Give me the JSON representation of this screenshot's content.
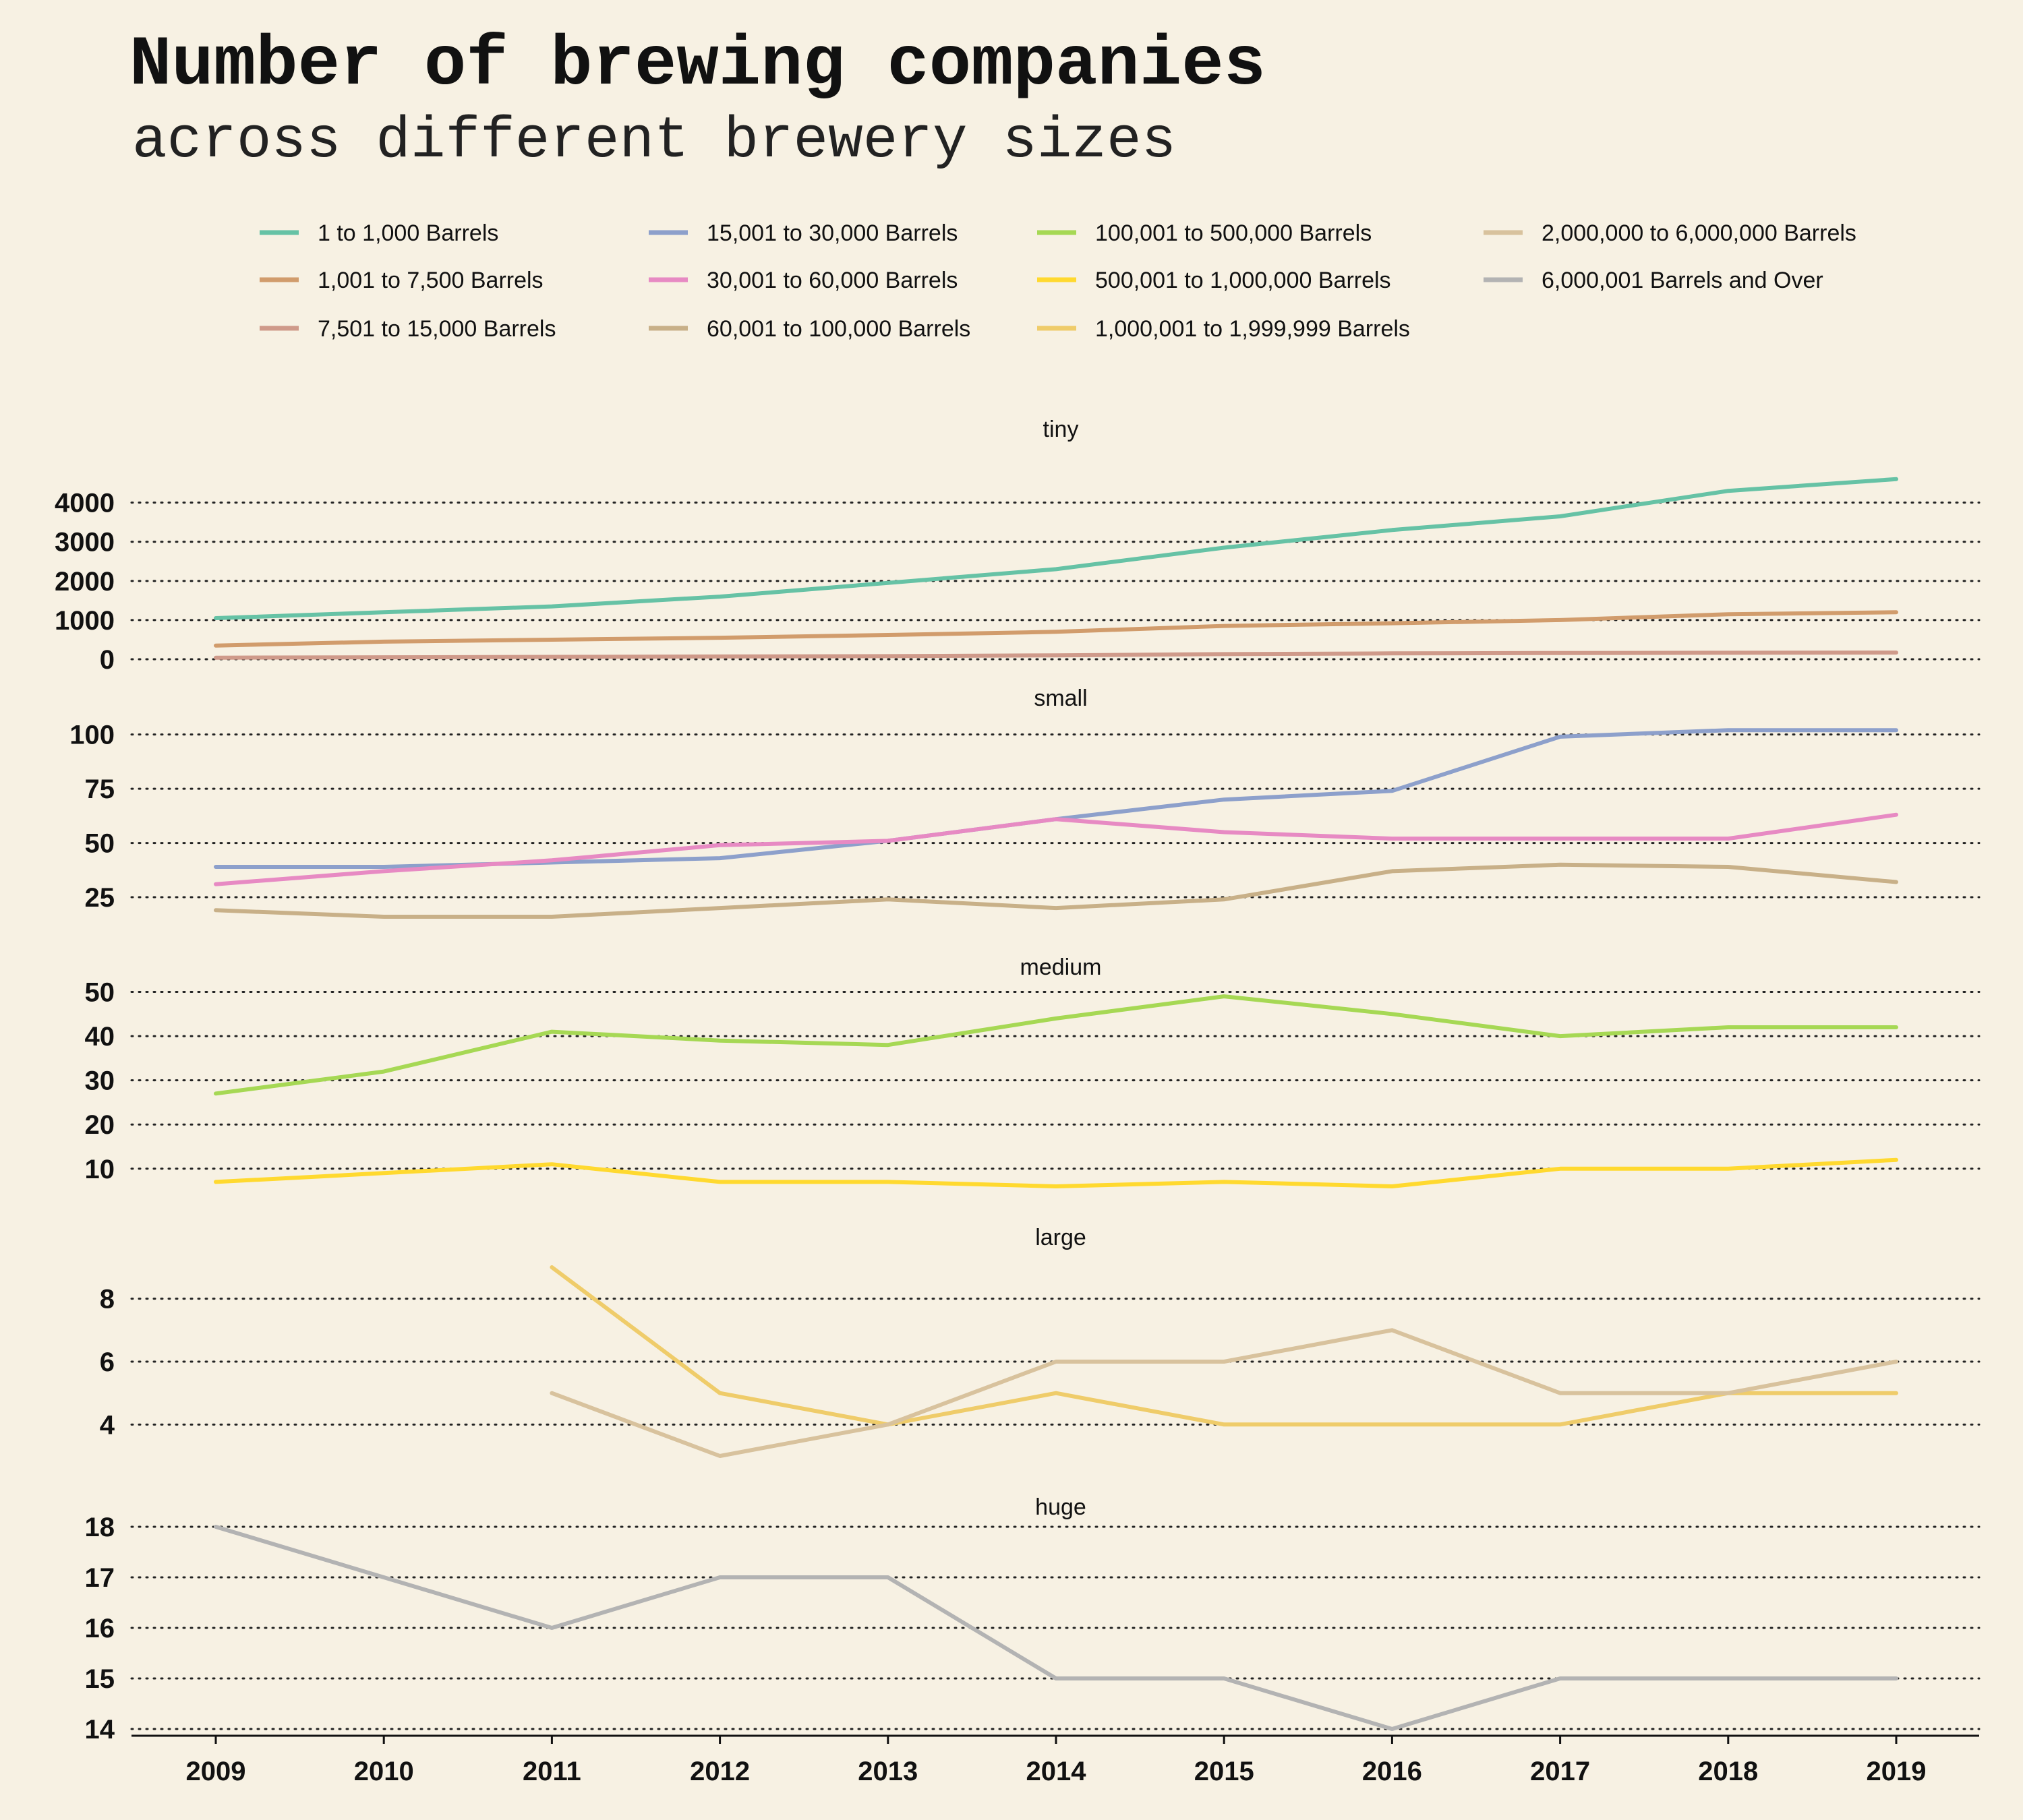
{
  "chart_data": {
    "type": "line",
    "title": "Number of brewing companies",
    "subtitle": "across different brewery sizes",
    "x": [
      2009,
      2010,
      2011,
      2012,
      2013,
      2014,
      2015,
      2016,
      2017,
      2018,
      2019
    ],
    "x_tick_labels": [
      "2009",
      "2010",
      "2011",
      "2012",
      "2013",
      "2014",
      "2015",
      "2016",
      "2017",
      "2018",
      "2019"
    ],
    "grid": "horizontal dotted",
    "legend_position": "top",
    "legend": [
      {
        "name": "1 to 1,000 Barrels",
        "color": "#66c2a5"
      },
      {
        "name": "15,001 to 30,000 Barrels",
        "color": "#8da0cb"
      },
      {
        "name": "100,001 to 500,000 Barrels",
        "color": "#a6d854"
      },
      {
        "name": "2,000,000 to 6,000,000 Barrels",
        "color": "#d8c29d"
      },
      {
        "name": "1,001 to 7,500 Barrels",
        "color": "#d19c6c"
      },
      {
        "name": "30,001 to 60,000 Barrels",
        "color": "#e78ac3"
      },
      {
        "name": "500,001 to 1,000,000 Barrels",
        "color": "#ffd92f"
      },
      {
        "name": "6,000,001 Barrels and Over",
        "color": "#b3b3b3"
      },
      {
        "name": "7,501 to 15,000 Barrels",
        "color": "#cf9a8a"
      },
      {
        "name": "60,001 to 100,000 Barrels",
        "color": "#c8b088"
      },
      {
        "name": "1,000,001 to 1,999,999 Barrels",
        "color": "#efcc6a"
      }
    ],
    "facets": [
      {
        "name": "tiny",
        "ylim": [
          0,
          4700
        ],
        "yticks": [
          0,
          1000,
          2000,
          3000,
          4000
        ],
        "ytick_labels": [
          "0",
          "1000",
          "2000",
          "3000",
          "4000"
        ],
        "series": [
          {
            "name": "1 to 1,000 Barrels",
            "color": "#66c2a5",
            "values": [
              1050,
              1200,
              1350,
              1600,
              1950,
              2300,
              2850,
              3300,
              3650,
              4300,
              4600
            ]
          },
          {
            "name": "1,001 to 7,500 Barrels",
            "color": "#d19c6c",
            "values": [
              350,
              450,
              500,
              550,
              620,
              700,
              850,
              920,
              1000,
              1150,
              1200
            ]
          },
          {
            "name": "7,501 to 15,000 Barrels",
            "color": "#cf9a8a",
            "values": [
              40,
              50,
              60,
              70,
              80,
              100,
              130,
              150,
              160,
              165,
              170
            ]
          }
        ]
      },
      {
        "name": "small",
        "ylim": [
          16,
          103
        ],
        "yticks": [
          25,
          50,
          75,
          100
        ],
        "ytick_labels": [
          "25",
          "50",
          "75",
          "100"
        ],
        "series": [
          {
            "name": "15,001 to 30,000 Barrels",
            "color": "#8da0cb",
            "values": [
              39,
              39,
              41,
              43,
              51,
              61,
              70,
              74,
              99,
              102,
              102
            ]
          },
          {
            "name": "30,001 to 60,000 Barrels",
            "color": "#e78ac3",
            "values": [
              31,
              37,
              42,
              49,
              51,
              61,
              55,
              52,
              52,
              52,
              63
            ]
          },
          {
            "name": "60,001 to 100,000 Barrels",
            "color": "#c8b088",
            "values": [
              19,
              16,
              16,
              20,
              24,
              20,
              24,
              37,
              40,
              39,
              32
            ]
          }
        ]
      },
      {
        "name": "medium",
        "ylim": [
          6,
          51
        ],
        "yticks": [
          10,
          20,
          30,
          40,
          50
        ],
        "ytick_labels": [
          "10",
          "20",
          "30",
          "40",
          "50"
        ],
        "series": [
          {
            "name": "100,001 to 500,000 Barrels",
            "color": "#a6d854",
            "values": [
              27,
              32,
              41,
              39,
              38,
              44,
              49,
              45,
              40,
              42,
              42
            ]
          },
          {
            "name": "500,001 to 1,000,000 Barrels",
            "color": "#ffd92f",
            "values": [
              7,
              9,
              11,
              7,
              7,
              6,
              7,
              6,
              10,
              10,
              12
            ]
          }
        ]
      },
      {
        "name": "large",
        "ylim": [
          3,
          9
        ],
        "yticks": [
          4,
          6,
          8
        ],
        "ytick_labels": [
          "4",
          "6",
          "8"
        ],
        "series": [
          {
            "name": "1,000,001 to 1,999,999 Barrels",
            "color": "#efcc6a",
            "values": [
              null,
              null,
              9,
              5,
              4,
              5,
              4,
              4,
              4,
              5,
              5
            ]
          },
          {
            "name": "2,000,000 to 6,000,000 Barrels",
            "color": "#d8c29d",
            "values": [
              null,
              null,
              5,
              3,
              4,
              6,
              6,
              7,
              5,
              5,
              6
            ]
          }
        ]
      },
      {
        "name": "huge",
        "ylim": [
          14,
          18
        ],
        "yticks": [
          14,
          15,
          16,
          17,
          18
        ],
        "ytick_labels": [
          "14",
          "15",
          "16",
          "17",
          "18"
        ],
        "series": [
          {
            "name": "6,000,001 Barrels and Over",
            "color": "#b3b3b3",
            "values": [
              18,
              17,
              16,
              17,
              17,
              15,
              15,
              14,
              15,
              15,
              15
            ]
          }
        ]
      }
    ]
  }
}
